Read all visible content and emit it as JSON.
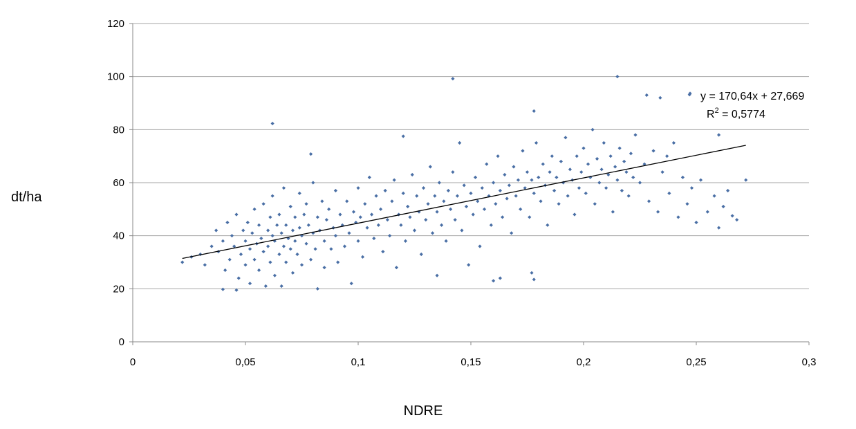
{
  "chart_data": {
    "type": "scatter",
    "xlabel": "NDRE",
    "ylabel": "dt/ha",
    "xlim": [
      0,
      0.3
    ],
    "ylim": [
      0,
      120
    ],
    "x_ticks": [
      0,
      0.05,
      0.1,
      0.15,
      0.2,
      0.25,
      0.3
    ],
    "x_tick_labels": [
      "0",
      "0,05",
      "0,1",
      "0,15",
      "0,2",
      "0,25",
      "0,3"
    ],
    "y_ticks": [
      0,
      20,
      40,
      60,
      80,
      100,
      120
    ],
    "y_tick_labels": [
      "0",
      "20",
      "40",
      "60",
      "80",
      "100",
      "120"
    ],
    "grid": "horizontal",
    "marker_color": "#4a6fa5",
    "trendline": {
      "type": "linear",
      "slope": 170.64,
      "intercept": 27.669,
      "x_range": [
        0.022,
        0.272
      ],
      "equation_label": "y = 170,64x + 27,669",
      "r2_prefix": "R",
      "r2_sup": "2",
      "r2_value": " = 0,5774",
      "color": "#000000"
    },
    "points": [
      [
        0.142,
        99.2
      ],
      [
        0.215,
        100
      ],
      [
        0.062,
        82.3
      ],
      [
        0.178,
        87
      ],
      [
        0.228,
        93
      ],
      [
        0.234,
        92
      ],
      [
        0.247,
        93.2
      ],
      [
        0.272,
        61
      ],
      [
        0.266,
        47.5
      ],
      [
        0.16,
        23
      ],
      [
        0.163,
        24
      ],
      [
        0.178,
        23.5
      ],
      [
        0.177,
        26
      ],
      [
        0.04,
        19.8
      ],
      [
        0.046,
        19.5
      ],
      [
        0.022,
        30
      ],
      [
        0.26,
        78
      ],
      [
        0.12,
        77.5
      ],
      [
        0.135,
        25
      ],
      [
        0.079,
        70.8
      ],
      [
        0.026,
        32
      ],
      [
        0.03,
        33
      ],
      [
        0.032,
        29
      ],
      [
        0.035,
        36
      ],
      [
        0.037,
        42
      ],
      [
        0.038,
        34
      ],
      [
        0.04,
        38
      ],
      [
        0.041,
        27
      ],
      [
        0.042,
        45
      ],
      [
        0.043,
        31
      ],
      [
        0.044,
        40
      ],
      [
        0.045,
        36
      ],
      [
        0.046,
        48
      ],
      [
        0.047,
        24
      ],
      [
        0.048,
        33
      ],
      [
        0.049,
        42
      ],
      [
        0.05,
        38
      ],
      [
        0.05,
        29
      ],
      [
        0.051,
        45
      ],
      [
        0.052,
        35
      ],
      [
        0.052,
        22
      ],
      [
        0.053,
        41
      ],
      [
        0.054,
        50
      ],
      [
        0.054,
        31
      ],
      [
        0.055,
        37
      ],
      [
        0.056,
        44
      ],
      [
        0.056,
        27
      ],
      [
        0.057,
        39
      ],
      [
        0.058,
        52
      ],
      [
        0.058,
        34
      ],
      [
        0.059,
        21
      ],
      [
        0.06,
        42
      ],
      [
        0.06,
        36
      ],
      [
        0.061,
        47
      ],
      [
        0.061,
        30
      ],
      [
        0.062,
        55
      ],
      [
        0.062,
        40
      ],
      [
        0.063,
        25
      ],
      [
        0.063,
        38
      ],
      [
        0.064,
        44
      ],
      [
        0.065,
        33
      ],
      [
        0.065,
        48
      ],
      [
        0.066,
        41
      ],
      [
        0.066,
        21
      ],
      [
        0.067,
        36
      ],
      [
        0.067,
        58
      ],
      [
        0.068,
        44
      ],
      [
        0.068,
        30
      ],
      [
        0.069,
        39
      ],
      [
        0.07,
        51
      ],
      [
        0.07,
        35
      ],
      [
        0.071,
        42
      ],
      [
        0.071,
        26
      ],
      [
        0.072,
        47
      ],
      [
        0.072,
        38
      ],
      [
        0.073,
        33
      ],
      [
        0.074,
        56
      ],
      [
        0.074,
        43
      ],
      [
        0.075,
        40
      ],
      [
        0.075,
        29
      ],
      [
        0.076,
        48
      ],
      [
        0.077,
        37
      ],
      [
        0.077,
        52
      ],
      [
        0.078,
        44
      ],
      [
        0.079,
        31
      ],
      [
        0.08,
        41
      ],
      [
        0.08,
        60
      ],
      [
        0.081,
        35
      ],
      [
        0.082,
        47
      ],
      [
        0.082,
        20
      ],
      [
        0.083,
        42
      ],
      [
        0.084,
        53
      ],
      [
        0.085,
        38
      ],
      [
        0.085,
        28
      ],
      [
        0.086,
        46
      ],
      [
        0.087,
        50
      ],
      [
        0.088,
        35
      ],
      [
        0.089,
        43
      ],
      [
        0.09,
        57
      ],
      [
        0.09,
        40
      ],
      [
        0.091,
        30
      ],
      [
        0.092,
        48
      ],
      [
        0.093,
        44
      ],
      [
        0.094,
        36
      ],
      [
        0.095,
        53
      ],
      [
        0.096,
        41
      ],
      [
        0.097,
        22
      ],
      [
        0.098,
        49
      ],
      [
        0.099,
        45
      ],
      [
        0.1,
        38
      ],
      [
        0.1,
        58
      ],
      [
        0.101,
        47
      ],
      [
        0.102,
        32
      ],
      [
        0.103,
        52
      ],
      [
        0.104,
        43
      ],
      [
        0.105,
        62
      ],
      [
        0.106,
        48
      ],
      [
        0.107,
        39
      ],
      [
        0.108,
        55
      ],
      [
        0.109,
        44
      ],
      [
        0.11,
        50
      ],
      [
        0.111,
        34
      ],
      [
        0.112,
        57
      ],
      [
        0.113,
        46
      ],
      [
        0.114,
        40
      ],
      [
        0.115,
        53
      ],
      [
        0.116,
        61
      ],
      [
        0.117,
        28
      ],
      [
        0.118,
        48
      ],
      [
        0.119,
        44
      ],
      [
        0.12,
        56
      ],
      [
        0.121,
        38
      ],
      [
        0.122,
        51
      ],
      [
        0.123,
        47
      ],
      [
        0.124,
        63
      ],
      [
        0.125,
        42
      ],
      [
        0.126,
        55
      ],
      [
        0.127,
        49
      ],
      [
        0.128,
        33
      ],
      [
        0.129,
        58
      ],
      [
        0.13,
        46
      ],
      [
        0.131,
        52
      ],
      [
        0.132,
        66
      ],
      [
        0.133,
        41
      ],
      [
        0.134,
        55
      ],
      [
        0.135,
        49
      ],
      [
        0.136,
        60
      ],
      [
        0.137,
        44
      ],
      [
        0.138,
        53
      ],
      [
        0.139,
        38
      ],
      [
        0.14,
        57
      ],
      [
        0.141,
        50
      ],
      [
        0.142,
        64
      ],
      [
        0.143,
        46
      ],
      [
        0.144,
        55
      ],
      [
        0.145,
        75
      ],
      [
        0.146,
        42
      ],
      [
        0.147,
        59
      ],
      [
        0.148,
        51
      ],
      [
        0.149,
        29
      ],
      [
        0.15,
        56
      ],
      [
        0.151,
        48
      ],
      [
        0.152,
        62
      ],
      [
        0.153,
        53
      ],
      [
        0.154,
        36
      ],
      [
        0.155,
        58
      ],
      [
        0.156,
        50
      ],
      [
        0.157,
        67
      ],
      [
        0.158,
        55
      ],
      [
        0.159,
        44
      ],
      [
        0.16,
        60
      ],
      [
        0.161,
        52
      ],
      [
        0.162,
        70
      ],
      [
        0.163,
        57
      ],
      [
        0.164,
        47
      ],
      [
        0.165,
        63
      ],
      [
        0.166,
        54
      ],
      [
        0.167,
        59
      ],
      [
        0.168,
        41
      ],
      [
        0.169,
        66
      ],
      [
        0.17,
        55
      ],
      [
        0.171,
        61
      ],
      [
        0.172,
        50
      ],
      [
        0.173,
        72
      ],
      [
        0.174,
        58
      ],
      [
        0.175,
        64
      ],
      [
        0.176,
        47
      ],
      [
        0.177,
        61
      ],
      [
        0.178,
        56
      ],
      [
        0.179,
        75
      ],
      [
        0.18,
        62
      ],
      [
        0.181,
        53
      ],
      [
        0.182,
        67
      ],
      [
        0.183,
        59
      ],
      [
        0.184,
        44
      ],
      [
        0.185,
        64
      ],
      [
        0.186,
        70
      ],
      [
        0.187,
        57
      ],
      [
        0.188,
        62
      ],
      [
        0.189,
        52
      ],
      [
        0.19,
        68
      ],
      [
        0.191,
        60
      ],
      [
        0.192,
        77
      ],
      [
        0.193,
        55
      ],
      [
        0.194,
        65
      ],
      [
        0.195,
        61
      ],
      [
        0.196,
        48
      ],
      [
        0.197,
        70
      ],
      [
        0.198,
        58
      ],
      [
        0.199,
        64
      ],
      [
        0.2,
        73
      ],
      [
        0.201,
        56
      ],
      [
        0.202,
        67
      ],
      [
        0.203,
        62
      ],
      [
        0.204,
        80
      ],
      [
        0.205,
        52
      ],
      [
        0.206,
        69
      ],
      [
        0.207,
        60
      ],
      [
        0.208,
        65
      ],
      [
        0.209,
        75
      ],
      [
        0.21,
        58
      ],
      [
        0.211,
        63
      ],
      [
        0.212,
        70
      ],
      [
        0.213,
        49
      ],
      [
        0.214,
        66
      ],
      [
        0.215,
        61
      ],
      [
        0.216,
        73
      ],
      [
        0.217,
        57
      ],
      [
        0.218,
        68
      ],
      [
        0.219,
        64
      ],
      [
        0.22,
        55
      ],
      [
        0.221,
        71
      ],
      [
        0.222,
        62
      ],
      [
        0.223,
        78
      ],
      [
        0.225,
        60
      ],
      [
        0.227,
        67
      ],
      [
        0.229,
        53
      ],
      [
        0.231,
        72
      ],
      [
        0.233,
        49
      ],
      [
        0.235,
        64
      ],
      [
        0.237,
        70
      ],
      [
        0.238,
        56
      ],
      [
        0.24,
        75
      ],
      [
        0.242,
        47
      ],
      [
        0.244,
        62
      ],
      [
        0.246,
        52
      ],
      [
        0.248,
        58
      ],
      [
        0.25,
        45
      ],
      [
        0.252,
        61
      ],
      [
        0.255,
        49
      ],
      [
        0.258,
        55
      ],
      [
        0.26,
        43
      ],
      [
        0.262,
        51
      ],
      [
        0.264,
        57
      ],
      [
        0.268,
        46
      ]
    ]
  }
}
